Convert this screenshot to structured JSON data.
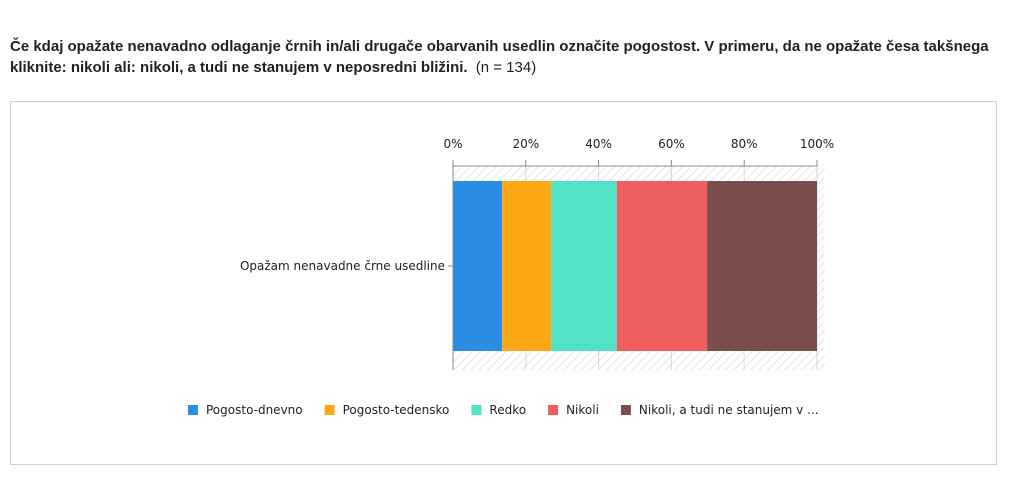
{
  "question": {
    "text": "Če kdaj opažate nenavadno odlaganje črnih in/ali drugače obarvanih usedlin označite pogostost. V primeru, da ne opažate česa takšnega kliknite: nikoli ali: nikoli, a tudi ne stanujem v neposredni bližini.",
    "count": "(n = 134)"
  },
  "chart_data": {
    "type": "bar",
    "orientation": "horizontal",
    "stacked": "percent",
    "categories": [
      "Opažam nenavadne črne usedline"
    ],
    "x_ticks": [
      "0%",
      "20%",
      "40%",
      "60%",
      "80%",
      "100%"
    ],
    "xlim": [
      0,
      100
    ],
    "x_axis_position": "top",
    "legend_position": "bottom",
    "series": [
      {
        "name": "Pogosto-dnevno",
        "values": [
          13.5
        ],
        "color": "#2b8ce4"
      },
      {
        "name": "Pogosto-tedensko",
        "values": [
          13.5
        ],
        "color": "#fca815"
      },
      {
        "name": "Redko",
        "values": [
          18.0
        ],
        "color": "#52e3c7"
      },
      {
        "name": "Nikoli",
        "values": [
          24.8
        ],
        "color": "#ef5e5e"
      },
      {
        "name": "Nikoli, a tudi ne stanujem v ...",
        "values": [
          30.2
        ],
        "color": "#7b4e4b"
      }
    ]
  }
}
